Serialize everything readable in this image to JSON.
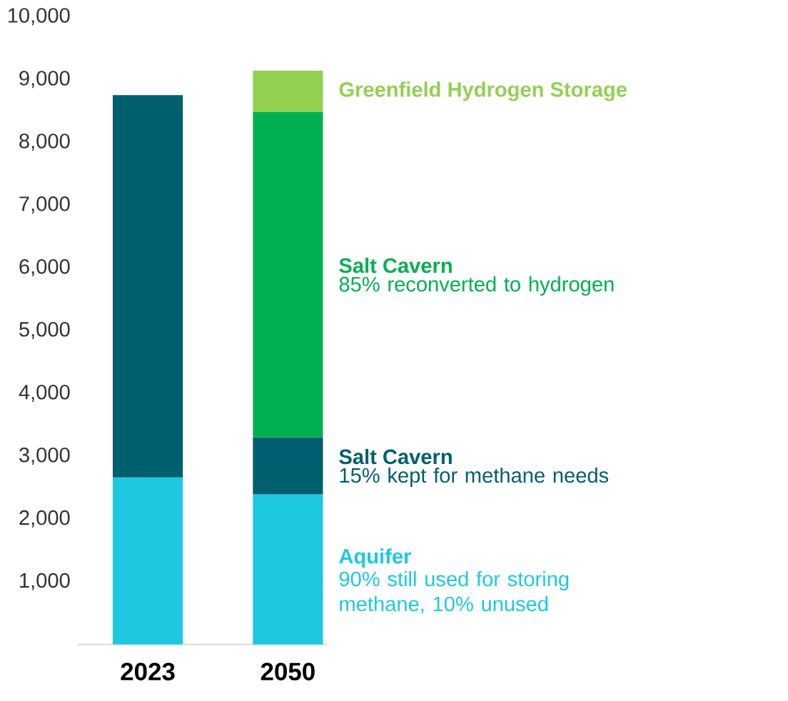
{
  "chart_data": {
    "type": "bar",
    "stacked": true,
    "categories": [
      "2023",
      "2050"
    ],
    "series": [
      {
        "name": "Aquifer",
        "color": "#1ec8e1",
        "values": [
          2660,
          2390
        ]
      },
      {
        "name": "Salt Cavern",
        "color": "#005f6e",
        "values": [
          6090,
          910
        ]
      },
      {
        "name": "Salt Cavern",
        "color": "#00b050",
        "values": [
          null,
          5180
        ]
      },
      {
        "name": "Greenfield Hydrogen Storage",
        "color": "#92d050",
        "values": [
          null,
          660
        ]
      }
    ],
    "annotations": [
      "90% still used for storing methane, 10% unused",
      "15% kept for methane needs",
      "85% reconverted to hydrogen"
    ],
    "ylim": [
      0,
      10000
    ],
    "yticks": [
      {
        "value": 1000,
        "label": "1,000"
      },
      {
        "value": 2000,
        "label": "2,000"
      },
      {
        "value": 3000,
        "label": "3,000"
      },
      {
        "value": 4000,
        "label": "4,000"
      },
      {
        "value": 5000,
        "label": "5,000"
      },
      {
        "value": 6000,
        "label": "6,000"
      },
      {
        "value": 7000,
        "label": "7,000"
      },
      {
        "value": 8000,
        "label": "8,000"
      },
      {
        "value": 9000,
        "label": "9,000"
      },
      {
        "value": 10000,
        "label": "10,000"
      }
    ],
    "legend": false,
    "grid": false
  }
}
